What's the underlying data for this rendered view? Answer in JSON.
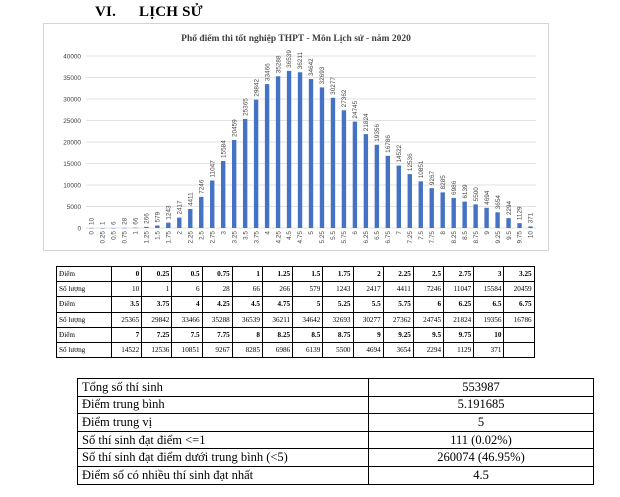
{
  "heading": {
    "number": "VI.",
    "title": "LỊCH SỬ"
  },
  "colors": {
    "bar": "#4472c4",
    "grid": "#d9d9d9",
    "text": "#404040"
  },
  "chart_data": {
    "type": "bar",
    "title": "Phổ điểm thi tốt nghiệp THPT - Môn Lịch sử - năm 2020",
    "xlabel": "",
    "ylabel": "",
    "ylim": [
      0,
      40000
    ],
    "yticks": [
      "0",
      "5000",
      "10000",
      "15000",
      "20000",
      "25000",
      "30000",
      "35000",
      "40000"
    ],
    "categories": [
      "0",
      "0.25",
      "0.5",
      "0.75",
      "1",
      "1.25",
      "1.5",
      "1.75",
      "2",
      "2.25",
      "2.5",
      "2.75",
      "3",
      "3.25",
      "3.5",
      "3.75",
      "4",
      "4.25",
      "4.5",
      "4.75",
      "5",
      "5.25",
      "5.5",
      "5.75",
      "6",
      "6.25",
      "6.5",
      "6.75",
      "7",
      "7.25",
      "7.5",
      "7.75",
      "8",
      "8.25",
      "8.5",
      "8.75",
      "9",
      "9.25",
      "9.5",
      "9.75",
      "10"
    ],
    "values": [
      10,
      1,
      6,
      28,
      66,
      266,
      579,
      1243,
      2417,
      4411,
      7246,
      11047,
      15584,
      20459,
      25365,
      29842,
      33466,
      35288,
      36539,
      36211,
      34642,
      32693,
      30277,
      27362,
      24745,
      21824,
      19356,
      16786,
      14522,
      12536,
      10851,
      9267,
      8285,
      6986,
      6139,
      5500,
      4694,
      3654,
      2294,
      1129,
      371
    ]
  },
  "score_table": {
    "rows": [
      {
        "label": "Điểm",
        "type": "pt",
        "cells": [
          "0",
          "0.25",
          "0.5",
          "0.75",
          "1",
          "1.25",
          "1.5",
          "1.75",
          "2",
          "2.25",
          "2.5",
          "2.75",
          "3",
          "3.25"
        ]
      },
      {
        "label": "Số lượng",
        "type": "cnt",
        "cells": [
          "10",
          "1",
          "6",
          "28",
          "66",
          "266",
          "579",
          "1243",
          "2417",
          "4411",
          "7246",
          "11047",
          "15584",
          "20459"
        ]
      },
      {
        "label": "Điểm",
        "type": "pt",
        "cells": [
          "3.5",
          "3.75",
          "4",
          "4.25",
          "4.5",
          "4.75",
          "5",
          "5.25",
          "5.5",
          "5.75",
          "6",
          "6.25",
          "6.5",
          "6.75"
        ]
      },
      {
        "label": "Số lượng",
        "type": "cnt",
        "cells": [
          "25365",
          "29842",
          "33466",
          "35288",
          "36539",
          "36211",
          "34642",
          "32693",
          "30277",
          "27362",
          "24745",
          "21824",
          "19356",
          "16786"
        ]
      },
      {
        "label": "Điểm",
        "type": "pt",
        "cells": [
          "7",
          "7.25",
          "7.5",
          "7.75",
          "8",
          "8.25",
          "8.5",
          "8.75",
          "9",
          "9.25",
          "9.5",
          "9.75",
          "10",
          ""
        ]
      },
      {
        "label": "Số lương",
        "type": "cnt",
        "cells": [
          "14522",
          "12536",
          "10851",
          "9267",
          "8285",
          "6986",
          "6139",
          "5500",
          "4694",
          "3654",
          "2294",
          "1129",
          "371",
          ""
        ]
      }
    ]
  },
  "stats": [
    {
      "label": "Tổng số thí sinh",
      "value": "553987"
    },
    {
      "label": "Điểm trung bình",
      "value": "5.191685"
    },
    {
      "label": "Điểm trung vị",
      "value": "5"
    },
    {
      "label": "Số thí sinh đạt điểm <=1",
      "value": "111 (0.02%)"
    },
    {
      "label": "Số thí sinh đạt điểm dưới trung bình (<5)",
      "value": "260074 (46.95%)"
    },
    {
      "label": "Điểm số có nhiều thí sinh đạt nhất",
      "value": "4.5"
    }
  ]
}
